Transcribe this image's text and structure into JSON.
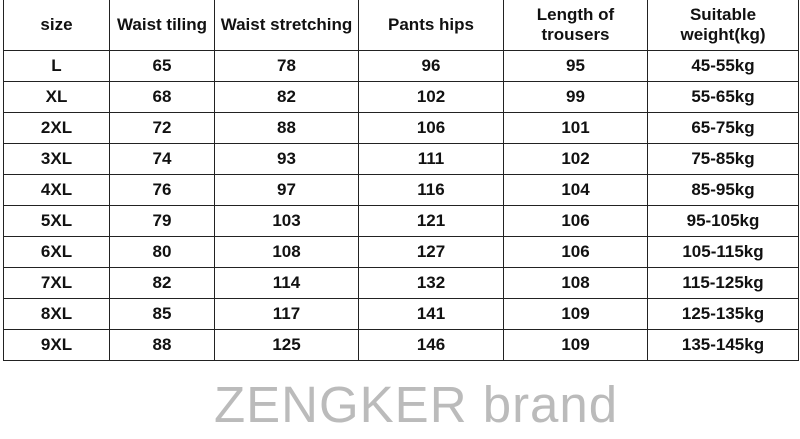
{
  "table": {
    "headers": [
      "size",
      "Waist tiling",
      "Waist stretching",
      "Pants hips",
      "Length of trousers",
      "Suitable weight(kg)"
    ],
    "rows": [
      [
        "L",
        "65",
        "78",
        "96",
        "95",
        "45-55kg"
      ],
      [
        "XL",
        "68",
        "82",
        "102",
        "99",
        "55-65kg"
      ],
      [
        "2XL",
        "72",
        "88",
        "106",
        "101",
        "65-75kg"
      ],
      [
        "3XL",
        "74",
        "93",
        "111",
        "102",
        "75-85kg"
      ],
      [
        "4XL",
        "76",
        "97",
        "116",
        "104",
        "85-95kg"
      ],
      [
        "5XL",
        "79",
        "103",
        "121",
        "106",
        "95-105kg"
      ],
      [
        "6XL",
        "80",
        "108",
        "127",
        "106",
        "105-115kg"
      ],
      [
        "7XL",
        "82",
        "114",
        "132",
        "108",
        "115-125kg"
      ],
      [
        "8XL",
        "85",
        "117",
        "141",
        "109",
        "125-135kg"
      ],
      [
        "9XL",
        "88",
        "125",
        "146",
        "109",
        "135-145kg"
      ]
    ]
  },
  "watermark": "ZENGKER brand"
}
